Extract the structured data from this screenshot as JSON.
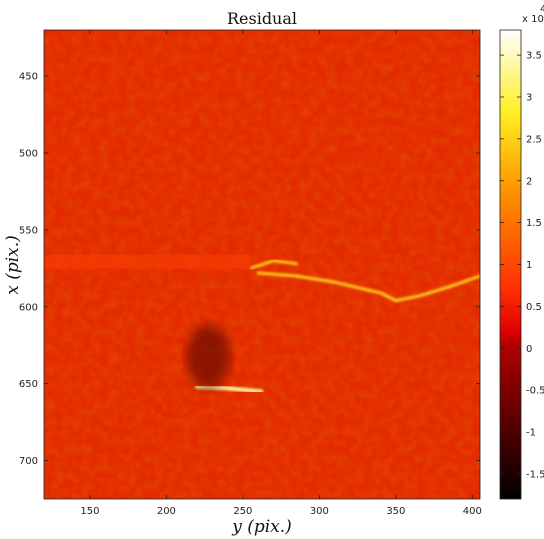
{
  "chart_data": {
    "type": "heatmap",
    "title": "Residual",
    "xlabel": "y (pix.)",
    "ylabel": "x (pix.)",
    "xlim": [
      120,
      405
    ],
    "ylim": [
      420,
      725
    ],
    "x_ticks": [
      150,
      200,
      250,
      300,
      350,
      400
    ],
    "y_ticks": [
      450,
      500,
      550,
      600,
      650,
      700
    ],
    "colormap": "hot",
    "colorbar": {
      "range": [
        -1.8,
        3.8
      ],
      "ticks": [
        -1.5,
        -1,
        -0.5,
        0,
        0.5,
        1,
        1.5,
        2,
        2.5,
        3,
        3.5
      ],
      "tick_labels": [
        "-1.5",
        "-1",
        "-0.5",
        "0",
        "0.5",
        "1",
        "1.5",
        "2",
        "2.5",
        "3",
        "3.5"
      ],
      "multiplier": "x 10",
      "exponent": "4"
    },
    "features": [
      {
        "name": "crack",
        "value": 2.0,
        "points": [
          [
            260,
            578
          ],
          [
            285,
            580
          ],
          [
            310,
            584
          ],
          [
            340,
            591
          ],
          [
            350,
            596
          ],
          [
            365,
            593
          ],
          [
            385,
            587
          ],
          [
            405,
            580
          ]
        ]
      },
      {
        "name": "crack-branch",
        "value": 1.6,
        "points": [
          [
            255,
            575
          ],
          [
            270,
            570
          ],
          [
            285,
            572
          ]
        ]
      },
      {
        "name": "horizontal-band",
        "value": 0.3,
        "points": [
          [
            120,
            570
          ],
          [
            255,
            570
          ]
        ]
      },
      {
        "name": "hole-edge",
        "value": 3.2,
        "points": [
          [
            220,
            652
          ],
          [
            240,
            653
          ],
          [
            262,
            655
          ]
        ]
      },
      {
        "name": "dark-patch",
        "value": -0.8,
        "points": [
          [
            220,
            625
          ],
          [
            235,
            640
          ]
        ]
      }
    ]
  },
  "colors": {
    "background": "#ffffff",
    "field_base": "#e12800"
  }
}
